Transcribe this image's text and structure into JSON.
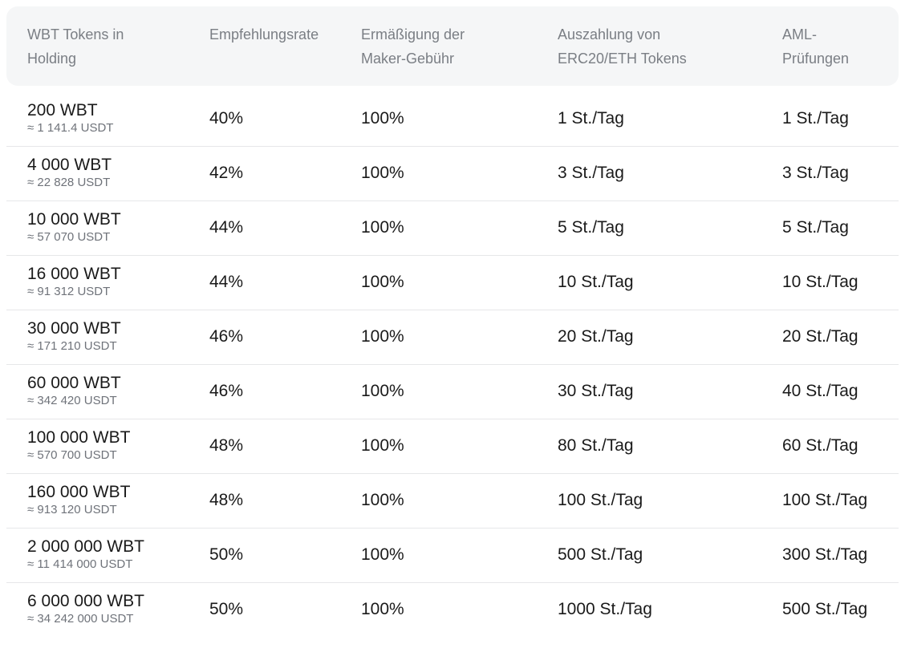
{
  "headers": [
    "WBT Tokens in\nHolding",
    "Empfehlungsrate",
    "Ermäßigung der\nMaker-Gebühr",
    "Auszahlung von\nERC20/ETH Tokens",
    "AML-\nPrüfungen"
  ],
  "rows": [
    {
      "amount": "200 WBT",
      "usdt": "≈ 1 141.4 USDT",
      "rate": "40%",
      "discount": "100%",
      "payout": "1 St./Tag",
      "aml": "1 St./Tag"
    },
    {
      "amount": "4 000 WBT",
      "usdt": "≈ 22 828 USDT",
      "rate": "42%",
      "discount": "100%",
      "payout": "3 St./Tag",
      "aml": "3 St./Tag"
    },
    {
      "amount": "10 000 WBT",
      "usdt": "≈ 57 070 USDT",
      "rate": "44%",
      "discount": "100%",
      "payout": "5 St./Tag",
      "aml": "5 St./Tag"
    },
    {
      "amount": "16 000 WBT",
      "usdt": "≈ 91 312 USDT",
      "rate": "44%",
      "discount": "100%",
      "payout": "10 St./Tag",
      "aml": "10 St./Tag"
    },
    {
      "amount": "30 000 WBT",
      "usdt": "≈ 171 210 USDT",
      "rate": "46%",
      "discount": "100%",
      "payout": "20 St./Tag",
      "aml": "20 St./Tag"
    },
    {
      "amount": "60 000 WBT",
      "usdt": "≈ 342 420 USDT",
      "rate": "46%",
      "discount": "100%",
      "payout": "30 St./Tag",
      "aml": "40 St./Tag"
    },
    {
      "amount": "100 000 WBT",
      "usdt": "≈ 570 700 USDT",
      "rate": "48%",
      "discount": "100%",
      "payout": "80 St./Tag",
      "aml": "60 St./Tag"
    },
    {
      "amount": "160 000 WBT",
      "usdt": "≈ 913 120 USDT",
      "rate": "48%",
      "discount": "100%",
      "payout": "100 St./Tag",
      "aml": "100 St./Tag"
    },
    {
      "amount": "2 000 000 WBT",
      "usdt": "≈ 11 414 000 USDT",
      "rate": "50%",
      "discount": "100%",
      "payout": "500 St./Tag",
      "aml": "300 St./Tag"
    },
    {
      "amount": "6 000 000 WBT",
      "usdt": "≈ 34 242 000 USDT",
      "rate": "50%",
      "discount": "100%",
      "payout": "1000 St./Tag",
      "aml": "500 St./Tag"
    }
  ]
}
